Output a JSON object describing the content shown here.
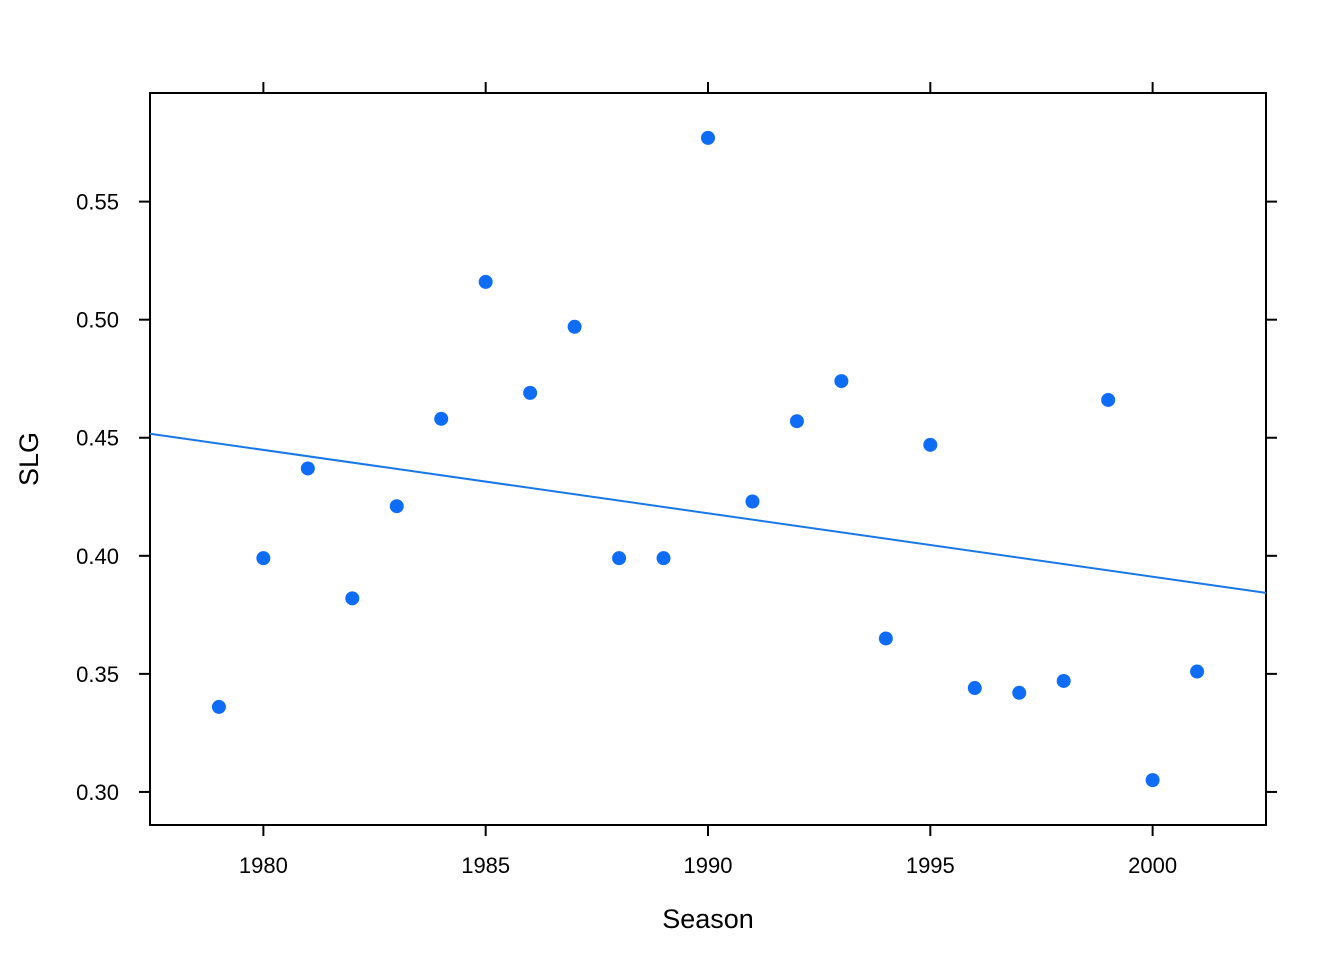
{
  "chart_data": {
    "type": "scatter",
    "title": "",
    "xlabel": "Season",
    "ylabel": "SLG",
    "xlim": [
      1977.45,
      2002.55
    ],
    "ylim": [
      0.286,
      0.596
    ],
    "xticks": [
      1980,
      1985,
      1990,
      1995,
      2000
    ],
    "yticks": [
      0.3,
      0.35,
      0.4,
      0.45,
      0.5,
      0.55
    ],
    "xtick_labels": [
      "1980",
      "1985",
      "1990",
      "1995",
      "2000"
    ],
    "ytick_labels": [
      "0.30",
      "0.35",
      "0.40",
      "0.45",
      "0.50",
      "0.55"
    ],
    "grid": false,
    "point_color": "#0F6CF5",
    "line_color": "#1878E8",
    "series": [
      {
        "points": [
          {
            "x": 1979,
            "y": 0.336
          },
          {
            "x": 1980,
            "y": 0.399
          },
          {
            "x": 1981,
            "y": 0.437
          },
          {
            "x": 1982,
            "y": 0.382
          },
          {
            "x": 1983,
            "y": 0.421
          },
          {
            "x": 1984,
            "y": 0.458
          },
          {
            "x": 1985,
            "y": 0.516
          },
          {
            "x": 1986,
            "y": 0.469
          },
          {
            "x": 1987,
            "y": 0.497
          },
          {
            "x": 1988,
            "y": 0.399
          },
          {
            "x": 1989,
            "y": 0.399
          },
          {
            "x": 1990,
            "y": 0.577
          },
          {
            "x": 1991,
            "y": 0.423
          },
          {
            "x": 1992,
            "y": 0.457
          },
          {
            "x": 1993,
            "y": 0.474
          },
          {
            "x": 1994,
            "y": 0.365
          },
          {
            "x": 1995,
            "y": 0.447
          },
          {
            "x": 1996,
            "y": 0.344
          },
          {
            "x": 1997,
            "y": 0.342
          },
          {
            "x": 1998,
            "y": 0.347
          },
          {
            "x": 1999,
            "y": 0.466
          },
          {
            "x": 2000,
            "y": 0.305
          },
          {
            "x": 2001,
            "y": 0.351
          }
        ]
      }
    ],
    "regression_line": {
      "x": [
        1977.45,
        2002.55
      ],
      "y": [
        0.4517,
        0.3843
      ]
    }
  }
}
